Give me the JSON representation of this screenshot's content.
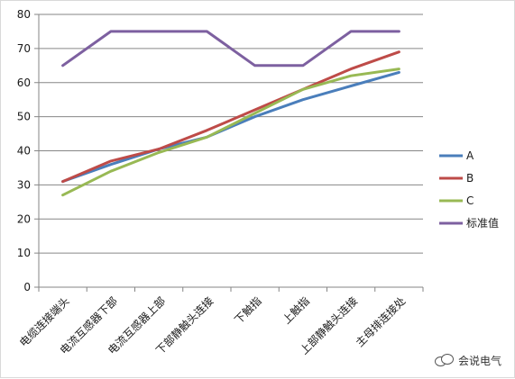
{
  "chart_data": {
    "type": "line",
    "title": "",
    "xlabel": "",
    "ylabel": "",
    "categories": [
      "电缆连接端头",
      "电流互感器下部",
      "电流互感器上部",
      "下部静触头连接",
      "下触指",
      "上触指",
      "上部静触头连接",
      "主母排连接处"
    ],
    "ylim": [
      0,
      80
    ],
    "yticks": [
      0,
      10,
      20,
      30,
      40,
      50,
      60,
      70,
      80
    ],
    "grid": "horizontal",
    "legend_position": "right",
    "series": [
      {
        "name": "A",
        "color": "#4a7ebb",
        "values": [
          31,
          36,
          40.5,
          44,
          50,
          55,
          59,
          63
        ]
      },
      {
        "name": "B",
        "color": "#be4b48",
        "values": [
          31,
          37,
          40.5,
          46,
          52,
          58,
          64,
          69
        ]
      },
      {
        "name": "C",
        "color": "#98b954",
        "values": [
          27,
          34,
          39.5,
          44,
          51,
          58,
          62,
          64
        ]
      },
      {
        "name": "标准值",
        "color": "#7d60a0",
        "values": [
          65,
          75,
          75,
          75,
          65,
          65,
          75,
          75
        ]
      }
    ]
  },
  "watermark": {
    "text": "会说电气",
    "icon": "wechat-icon"
  }
}
